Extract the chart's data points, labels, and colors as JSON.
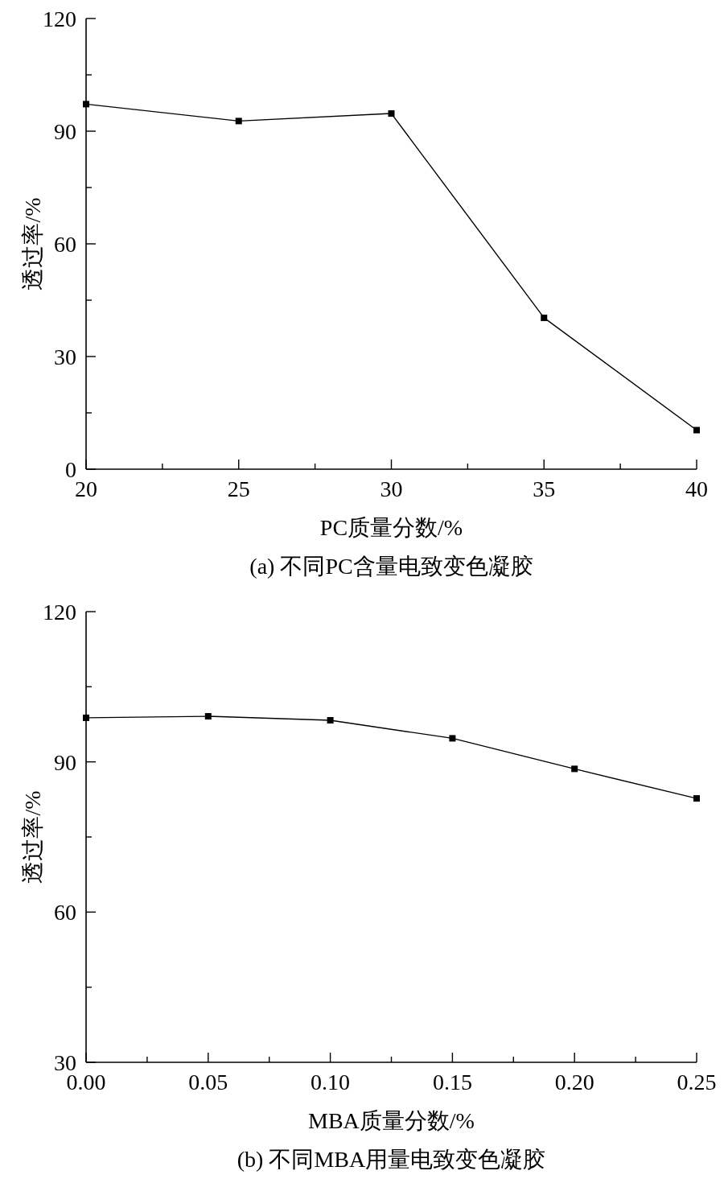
{
  "chart_data": [
    {
      "type": "line",
      "title": "(a) 不同PC含量电致变色凝胶",
      "xlabel": "PC质量分数/%",
      "ylabel": "透过率/%",
      "x": [
        20,
        25,
        30,
        35,
        40
      ],
      "values": [
        97.2,
        92.7,
        94.7,
        40.3,
        10.4
      ],
      "color": "#000000",
      "marker": "square",
      "line_style": "solid",
      "xlim": [
        20,
        40
      ],
      "xticks": [
        20,
        {
          "value": 22.5,
          "label": null
        },
        25,
        {
          "value": 27.5,
          "label": null
        },
        30,
        {
          "value": 32.5,
          "label": null
        },
        35,
        {
          "value": 37.5,
          "label": null
        },
        40
      ],
      "ylim": [
        0,
        120
      ],
      "yticks": [
        0,
        {
          "value": 15,
          "label": null
        },
        30,
        {
          "value": 45,
          "label": null
        },
        60,
        {
          "value": 75,
          "label": null
        },
        90,
        {
          "value": 105,
          "label": null
        },
        120
      ]
    },
    {
      "type": "line",
      "title": "(b) 不同MBA用量电致变色凝胶",
      "xlabel": "MBA质量分数/%",
      "ylabel": "透过率/%",
      "x": [
        0,
        0.05,
        0.1,
        0.15,
        0.2,
        0.25
      ],
      "values": [
        98.8,
        99.1,
        98.3,
        94.7,
        88.6,
        82.7
      ],
      "color": "#000000",
      "marker": "square",
      "line_style": "solid",
      "xlim": [
        0,
        0.25
      ],
      "xticks": [
        {
          "value": 0,
          "label": "0.00"
        },
        {
          "value": 0.025,
          "label": null
        },
        0.05,
        {
          "value": 0.075,
          "label": null
        },
        {
          "value": 0.1,
          "label": "0.10"
        },
        {
          "value": 0.125,
          "label": null
        },
        0.15,
        {
          "value": 0.175,
          "label": null
        },
        {
          "value": 0.2,
          "label": "0.20"
        },
        {
          "value": 0.225,
          "label": null
        },
        0.25
      ],
      "ylim": [
        30,
        120
      ],
      "yticks": [
        30,
        {
          "value": 45,
          "label": null
        },
        60,
        {
          "value": 75,
          "label": null
        },
        90,
        {
          "value": 105,
          "label": null
        },
        120
      ]
    }
  ]
}
